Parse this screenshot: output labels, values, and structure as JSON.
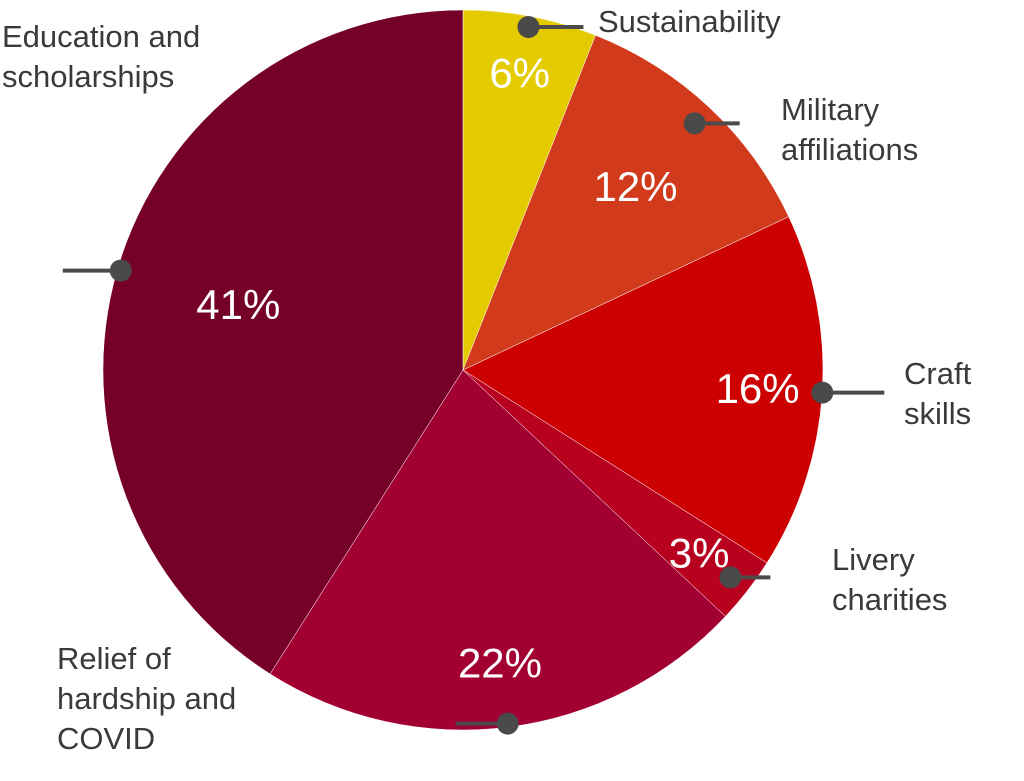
{
  "chart_data": {
    "type": "pie",
    "slices": [
      {
        "label_lines": [
          "Sustainability"
        ],
        "value": 6,
        "value_label": "6%",
        "color": "#E3CB00"
      },
      {
        "label_lines": [
          "Military",
          "affiliations"
        ],
        "value": 12,
        "value_label": "12%",
        "color": "#D13A1B"
      },
      {
        "label_lines": [
          "Craft",
          "skills"
        ],
        "value": 16,
        "value_label": "16%",
        "color": "#CC0000"
      },
      {
        "label_lines": [
          "Livery",
          "charities"
        ],
        "value": 3,
        "value_label": "3%",
        "color": "#B8001F"
      },
      {
        "label_lines": [
          "Relief of",
          "hardship and",
          "COVID"
        ],
        "value": 22,
        "value_label": "22%",
        "color": "#A20032"
      },
      {
        "label_lines": [
          "Education and",
          "scholarships"
        ],
        "value": 41,
        "value_label": "41%",
        "color": "#75002A"
      }
    ],
    "start_angle_deg": 0,
    "direction": "clockwise",
    "legend": "callouts"
  },
  "colors": {
    "leader": "#4a4a4a",
    "label_text": "#3a3a3a",
    "value_text": "#ffffff"
  }
}
